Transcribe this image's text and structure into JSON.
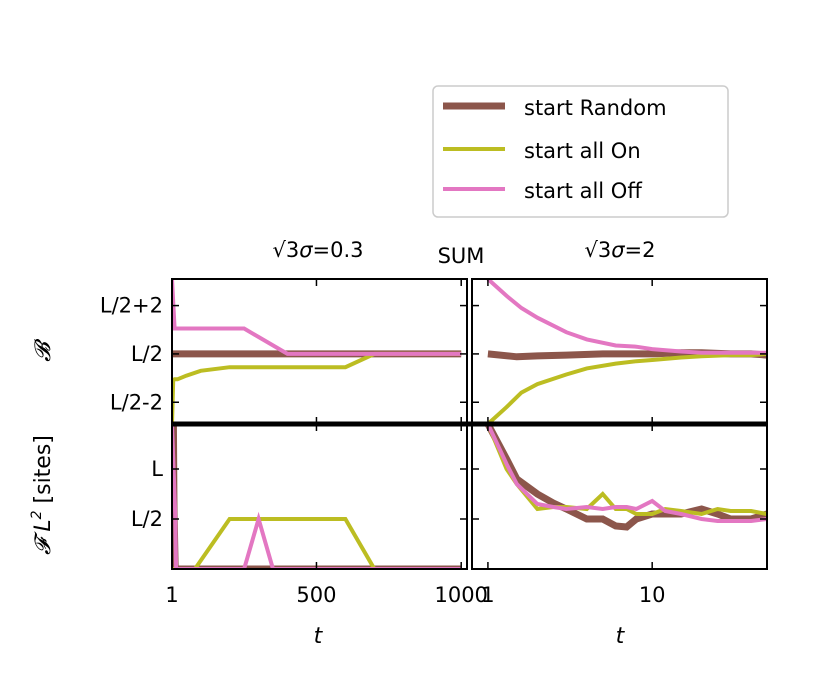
{
  "chart_data": {
    "type": "line",
    "legend": {
      "placement": "top-right",
      "entries": [
        {
          "label": "start Random",
          "color": "#8c564b"
        },
        {
          "label": "start all On",
          "color": "#bcbd22"
        },
        {
          "label": "start all Off",
          "color": "#e377c2"
        }
      ]
    },
    "center_label": "SUM",
    "columns": [
      {
        "title_prefix": "√3",
        "title_symbol": "σ",
        "title_suffix": "=0.3",
        "xlabel": "t",
        "xscale": "linear",
        "xlim": [
          1,
          1020
        ],
        "xticks": [
          1,
          500,
          1000
        ],
        "xticklabels": [
          "1",
          "500",
          "1000"
        ]
      },
      {
        "title_prefix": "√3",
        "title_symbol": "σ",
        "title_suffix": "=2",
        "xlabel": "t",
        "xscale": "log",
        "xlim": [
          0.8,
          50
        ],
        "xticks": [
          1,
          10
        ],
        "xticklabels": [
          "1",
          "10"
        ]
      }
    ],
    "rows": [
      {
        "ylabel": "𝓑",
        "ylim": [
          -2.9,
          3.1
        ],
        "yticks": [
          -2,
          0,
          2
        ],
        "yticklabels": [
          "L/2-2",
          "L/2",
          "L/2+2"
        ]
      },
      {
        "ylabel_prefix": "𝓕 L",
        "ylabel_sup": "2",
        "ylabel_suffix": " [sites]",
        "ylim": [
          0,
          1.45
        ],
        "yticks": [
          0.5,
          1.0
        ],
        "yticklabels": [
          "L/2",
          "L"
        ]
      }
    ],
    "panels": [
      {
        "row": 0,
        "col": 0,
        "series": [
          {
            "name": "start Random",
            "x": [
              1,
              20,
              1000
            ],
            "y": [
              0,
              0,
              0
            ]
          },
          {
            "name": "start all On",
            "x": [
              1,
              5,
              10,
              20,
              50,
              100,
              200,
              400,
              600,
              700,
              800,
              1000
            ],
            "y": [
              -2.9,
              -1.1,
              -1.05,
              -1.05,
              -0.9,
              -0.7,
              -0.55,
              -0.55,
              -0.55,
              0,
              0,
              0
            ]
          },
          {
            "name": "start all Off",
            "x": [
              1,
              10,
              20,
              50,
              100,
              200,
              250,
              300,
              400,
              600,
              800,
              1000
            ],
            "y": [
              3.1,
              1.05,
              1.05,
              1.05,
              1.05,
              1.05,
              1.05,
              0.7,
              0,
              0,
              0,
              0
            ]
          }
        ]
      },
      {
        "row": 0,
        "col": 1,
        "series": [
          {
            "name": "start Random",
            "x": [
              1,
              1.5,
              2,
              3,
              5,
              7,
              10,
              15,
              20,
              30,
              40,
              50
            ],
            "y": [
              0,
              -0.12,
              -0.08,
              -0.05,
              0,
              0,
              0,
              0.05,
              0.05,
              0,
              0,
              -0.05
            ]
          },
          {
            "name": "start all On",
            "x": [
              1,
              1.3,
              1.6,
              2,
              3,
              4,
              6,
              8,
              10,
              15,
              20,
              30,
              40,
              50
            ],
            "y": [
              -2.9,
              -2.2,
              -1.6,
              -1.25,
              -0.85,
              -0.6,
              -0.4,
              -0.3,
              -0.25,
              -0.15,
              -0.1,
              -0.05,
              -0.05,
              0
            ]
          },
          {
            "name": "start all Off",
            "x": [
              1,
              1.3,
              1.6,
              2,
              3,
              4,
              6,
              8,
              10,
              15,
              20,
              30,
              40,
              50
            ],
            "y": [
              3.1,
              2.4,
              1.9,
              1.5,
              0.9,
              0.6,
              0.35,
              0.3,
              0.2,
              0.1,
              0.05,
              0.05,
              0.05,
              0.05
            ]
          }
        ]
      },
      {
        "row": 1,
        "col": 0,
        "series": [
          {
            "name": "start Random",
            "x": [
              1,
              6,
              8,
              12,
              20,
              100,
              500,
              1000
            ],
            "y": [
              1.45,
              1.45,
              0.6,
              0,
              0,
              0,
              0,
              0
            ]
          },
          {
            "name": "start all On",
            "x": [
              1,
              80,
              200,
              300,
              400,
              600,
              700,
              1000
            ],
            "y": [
              0,
              0,
              0.5,
              0.5,
              0.5,
              0.5,
              0,
              0
            ]
          },
          {
            "name": "start all Off",
            "x": [
              1,
              12,
              15,
              20,
              100,
              250,
              300,
              350,
              1000
            ],
            "y": [
              1.45,
              0.55,
              0,
              0,
              0,
              0,
              0.5,
              0,
              0
            ]
          }
        ]
      },
      {
        "row": 1,
        "col": 1,
        "series": [
          {
            "name": "start Random",
            "x": [
              1,
              1.3,
              1.5,
              2,
              2.5,
              3,
              4,
              5,
              6,
              7,
              8,
              10,
              12,
              15,
              20,
              25,
              30,
              40,
              50
            ],
            "y": [
              1.45,
              1.1,
              0.9,
              0.75,
              0.66,
              0.6,
              0.5,
              0.5,
              0.43,
              0.42,
              0.5,
              0.55,
              0.55,
              0.55,
              0.6,
              0.55,
              0.5,
              0.5,
              0.55
            ]
          },
          {
            "name": "start all On",
            "x": [
              1,
              1.3,
              1.5,
              2,
              2.5,
              3,
              4,
              5,
              6,
              7,
              8,
              10,
              12,
              15,
              20,
              25,
              30,
              40,
              50
            ],
            "y": [
              1.45,
              1.0,
              0.85,
              0.6,
              0.62,
              0.62,
              0.6,
              0.75,
              0.6,
              0.6,
              0.55,
              0.55,
              0.6,
              0.58,
              0.55,
              0.6,
              0.58,
              0.58,
              0.55
            ]
          },
          {
            "name": "start all Off",
            "x": [
              1,
              1.3,
              1.5,
              2,
              2.5,
              3,
              4,
              5,
              6,
              7,
              8,
              10,
              12,
              15,
              20,
              25,
              30,
              40,
              50
            ],
            "y": [
              1.45,
              1.05,
              0.85,
              0.65,
              0.62,
              0.6,
              0.62,
              0.6,
              0.62,
              0.62,
              0.6,
              0.68,
              0.58,
              0.55,
              0.5,
              0.48,
              0.48,
              0.48,
              0.5
            ]
          }
        ]
      }
    ]
  }
}
